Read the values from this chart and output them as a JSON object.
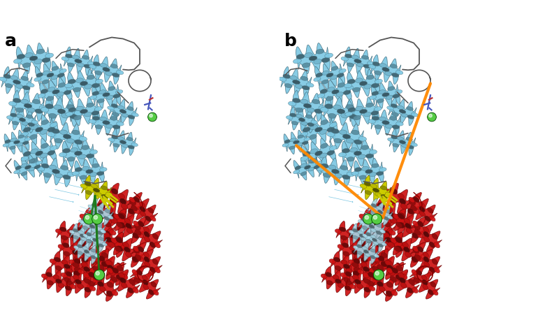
{
  "fig_w": 8.0,
  "fig_h": 4.71,
  "dpi": 100,
  "bg": "#ffffff",
  "blue": "#7EC8E3",
  "blue_dark": "#4a9ab5",
  "blue_light": "#aaddee",
  "red": "#CC1111",
  "red_dark": "#880000",
  "red_light": "#ee4444",
  "yellow": "#CCCC00",
  "yellow_dark": "#888800",
  "dkgreen": "#1A7A1A",
  "ltgreen": "#55CC44",
  "orange": "#FF8800",
  "loop_col": "#555555",
  "label_a": "a",
  "label_b": "b",
  "label_fs": 18
}
